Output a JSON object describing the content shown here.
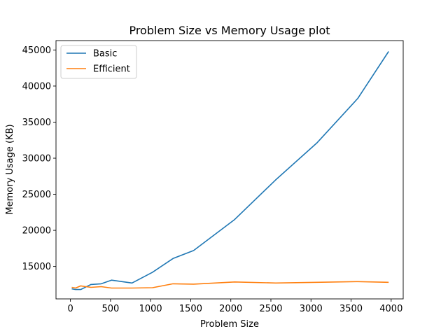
{
  "chart_data": {
    "type": "line",
    "title": "Problem Size vs Memory Usage plot",
    "xlabel": "Problem Size",
    "ylabel": "Memory Usage (KB)",
    "xlim": [
      -180,
      4150
    ],
    "ylim": [
      10500,
      46300
    ],
    "xticks": [
      0,
      500,
      1000,
      1500,
      2000,
      2500,
      3000,
      3500,
      4000
    ],
    "xtick_labels": [
      "0",
      "500",
      "1000",
      "1500",
      "2000",
      "2500",
      "3000",
      "3500",
      "4000"
    ],
    "yticks": [
      15000,
      20000,
      25000,
      30000,
      35000,
      40000,
      45000
    ],
    "ytick_labels": [
      "15000",
      "20000",
      "25000",
      "30000",
      "35000",
      "40000",
      "45000"
    ],
    "grid": false,
    "legend_position": "top-left",
    "series": [
      {
        "name": "Basic",
        "color": "#1f77b4",
        "x": [
          16,
          64,
          128,
          256,
          384,
          512,
          768,
          1024,
          1280,
          1536,
          2048,
          2560,
          3072,
          3584,
          3968
        ],
        "y": [
          11900,
          11800,
          11800,
          12500,
          12600,
          13100,
          12700,
          14200,
          16100,
          17200,
          21500,
          27000,
          32100,
          38300,
          44800
        ]
      },
      {
        "name": "Efficient",
        "color": "#ff7f0e",
        "x": [
          16,
          64,
          128,
          192,
          256,
          384,
          512,
          768,
          1024,
          1280,
          1536,
          2048,
          2560,
          3072,
          3584,
          3968
        ],
        "y": [
          12100,
          12000,
          12300,
          12200,
          12100,
          12200,
          12000,
          12000,
          12050,
          12600,
          12550,
          12850,
          12700,
          12800,
          12900,
          12800
        ]
      }
    ]
  }
}
